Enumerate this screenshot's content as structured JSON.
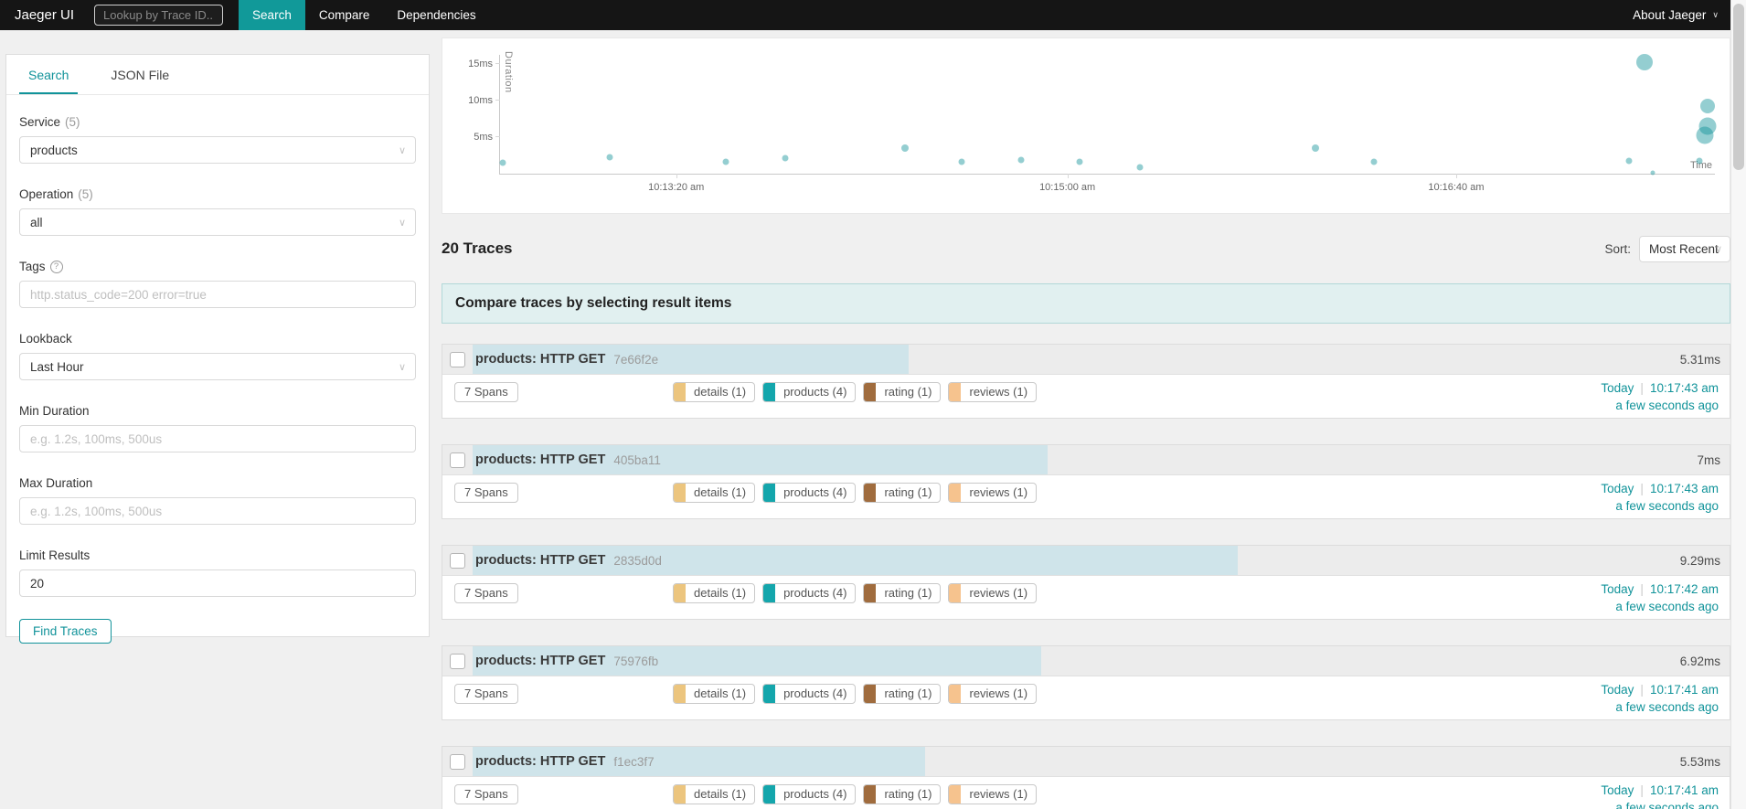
{
  "nav": {
    "brand": "Jaeger UI",
    "trace_lookup_placeholder": "Lookup by Trace ID...",
    "items": [
      {
        "label": "Search",
        "active": true
      },
      {
        "label": "Compare",
        "active": false
      },
      {
        "label": "Dependencies",
        "active": false
      }
    ],
    "about_label": "About Jaeger"
  },
  "sidebar": {
    "tabs": [
      {
        "label": "Search",
        "active": true
      },
      {
        "label": "JSON File",
        "active": false
      }
    ],
    "service": {
      "label": "Service",
      "count": "(5)",
      "value": "products"
    },
    "operation": {
      "label": "Operation",
      "count": "(5)",
      "value": "all"
    },
    "tags": {
      "label": "Tags",
      "placeholder": "http.status_code=200 error=true"
    },
    "lookback": {
      "label": "Lookback",
      "value": "Last Hour"
    },
    "min_duration": {
      "label": "Min Duration",
      "placeholder": "e.g. 1.2s, 100ms, 500us"
    },
    "max_duration": {
      "label": "Max Duration",
      "placeholder": "e.g. 1.2s, 100ms, 500us"
    },
    "limit": {
      "label": "Limit Results",
      "value": "20"
    },
    "find_traces_label": "Find Traces"
  },
  "chart_data": {
    "type": "scatter",
    "title": "",
    "xlabel": "Time",
    "ylabel": "Duration",
    "x_domain": [
      "~10:12:30 am",
      "~10:17:50 am"
    ],
    "ylim_ms": [
      0,
      16.6
    ],
    "grid": false,
    "legend": "none",
    "point_color": "#12939a",
    "y_ticks": [
      {
        "label": "5ms",
        "ms": 5
      },
      {
        "label": "10ms",
        "ms": 10
      },
      {
        "label": "15ms",
        "ms": 15
      }
    ],
    "x_ticks": [
      {
        "label": "10:13:20 am",
        "pos": 0.145
      },
      {
        "label": "10:15:00 am",
        "pos": 0.467
      },
      {
        "label": "10:16:40 am",
        "pos": 0.787
      }
    ],
    "points": [
      {
        "x": 0.002,
        "y_ms": 1.5,
        "r": 3.5
      },
      {
        "x": 0.09,
        "y_ms": 2.2,
        "r": 3.5
      },
      {
        "x": 0.186,
        "y_ms": 1.6,
        "r": 3.5
      },
      {
        "x": 0.235,
        "y_ms": 2.1,
        "r": 3.5
      },
      {
        "x": 0.333,
        "y_ms": 3.5,
        "r": 4
      },
      {
        "x": 0.38,
        "y_ms": 1.6,
        "r": 3.5
      },
      {
        "x": 0.429,
        "y_ms": 1.9,
        "r": 3.5
      },
      {
        "x": 0.477,
        "y_ms": 1.6,
        "r": 3.5
      },
      {
        "x": 0.527,
        "y_ms": 0.85,
        "r": 3.5
      },
      {
        "x": 0.671,
        "y_ms": 3.5,
        "r": 4
      },
      {
        "x": 0.719,
        "y_ms": 1.6,
        "r": 3.5
      },
      {
        "x": 0.929,
        "y_ms": 1.8,
        "r": 3.5
      },
      {
        "x": 0.942,
        "y_ms": 15.2,
        "r": 9
      },
      {
        "x": 0.949,
        "y_ms": 0.15,
        "r": 2.5
      },
      {
        "x": 0.987,
        "y_ms": 1.8,
        "r": 3.5
      },
      {
        "x": 0.994,
        "y_ms": 9.2,
        "r": 8
      },
      {
        "x": 0.994,
        "y_ms": 6.5,
        "r": 9.5
      },
      {
        "x": 0.992,
        "y_ms": 5.2,
        "r": 9.5
      }
    ]
  },
  "results": {
    "count_label": "20 Traces",
    "sort_label": "Sort:",
    "sort_value": "Most Recent",
    "banner": "Compare traces by selecting result items",
    "date_separator": "|",
    "span_tags": [
      {
        "label": "details (1)",
        "color": "#ecc57e"
      },
      {
        "label": "products (4)",
        "color": "#14a6ac"
      },
      {
        "label": "rating (1)",
        "color": "#a06c3e"
      },
      {
        "label": "reviews (1)",
        "color": "#f6c38e"
      }
    ],
    "traces": [
      {
        "title": "products: HTTP GET",
        "trace_id": "7e66f2e",
        "duration": "5.31ms",
        "bar_pct": 36.2,
        "spans_label": "7 Spans",
        "day": "Today",
        "time": "10:17:43 am",
        "relative": "a few seconds ago"
      },
      {
        "title": "products: HTTP GET",
        "trace_id": "405ba11",
        "duration": "7ms",
        "bar_pct": 47.0,
        "spans_label": "7 Spans",
        "day": "Today",
        "time": "10:17:43 am",
        "relative": "a few seconds ago"
      },
      {
        "title": "products: HTTP GET",
        "trace_id": "2835d0d",
        "duration": "9.29ms",
        "bar_pct": 61.8,
        "spans_label": "7 Spans",
        "day": "Today",
        "time": "10:17:42 am",
        "relative": "a few seconds ago"
      },
      {
        "title": "products: HTTP GET",
        "trace_id": "75976fb",
        "duration": "6.92ms",
        "bar_pct": 46.5,
        "spans_label": "7 Spans",
        "day": "Today",
        "time": "10:17:41 am",
        "relative": "a few seconds ago"
      },
      {
        "title": "products: HTTP GET",
        "trace_id": "f1ec3f7",
        "duration": "5.53ms",
        "bar_pct": 37.5,
        "spans_label": "7 Spans",
        "day": "Today",
        "time": "10:17:41 am",
        "relative": "a few seconds ago"
      }
    ]
  }
}
